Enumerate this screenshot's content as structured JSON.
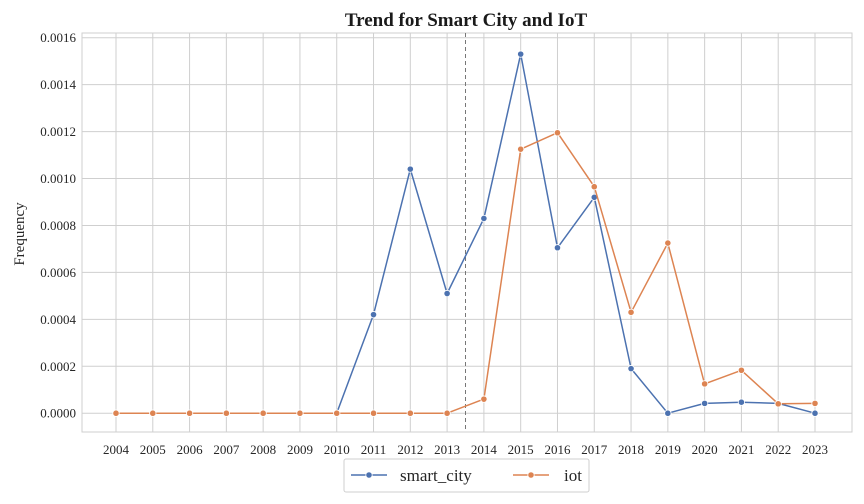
{
  "chart_data": {
    "type": "line",
    "title": "Trend for Smart City and IoT",
    "xlabel": "",
    "ylabel": "Frequency",
    "x": [
      "2004",
      "2005",
      "2006",
      "2007",
      "2008",
      "2009",
      "2010",
      "2011",
      "2012",
      "2013",
      "2014",
      "2015",
      "2016",
      "2017",
      "2018",
      "2019",
      "2020",
      "2021",
      "2022",
      "2023"
    ],
    "yticks": [
      "0.0000",
      "0.0002",
      "0.0004",
      "0.0006",
      "0.0008",
      "0.0010",
      "0.0012",
      "0.0014",
      "0.0016"
    ],
    "ylim": [
      -8e-05,
      0.00162
    ],
    "grid": true,
    "legend_position": "bottom-center",
    "reference_line": {
      "x_between": [
        "2013",
        "2014"
      ],
      "style": "dashed",
      "color": "#777777"
    },
    "series": [
      {
        "name": "smart_city",
        "color": "#4c72b0",
        "values": [
          0,
          0,
          0,
          0,
          0,
          0,
          0,
          0.00042,
          0.00104,
          0.00051,
          0.00083,
          0.00153,
          0.000705,
          0.00092,
          0.00019,
          0,
          4.2e-05,
          4.7e-05,
          4.2e-05,
          0
        ]
      },
      {
        "name": "iot",
        "color": "#dd8452",
        "values": [
          0,
          0,
          0,
          0,
          0,
          0,
          0,
          0,
          0,
          0,
          6e-05,
          0.001125,
          0.001195,
          0.000965,
          0.00043,
          0.000725,
          0.000125,
          0.000183,
          4e-05,
          4.2e-05
        ]
      }
    ]
  }
}
